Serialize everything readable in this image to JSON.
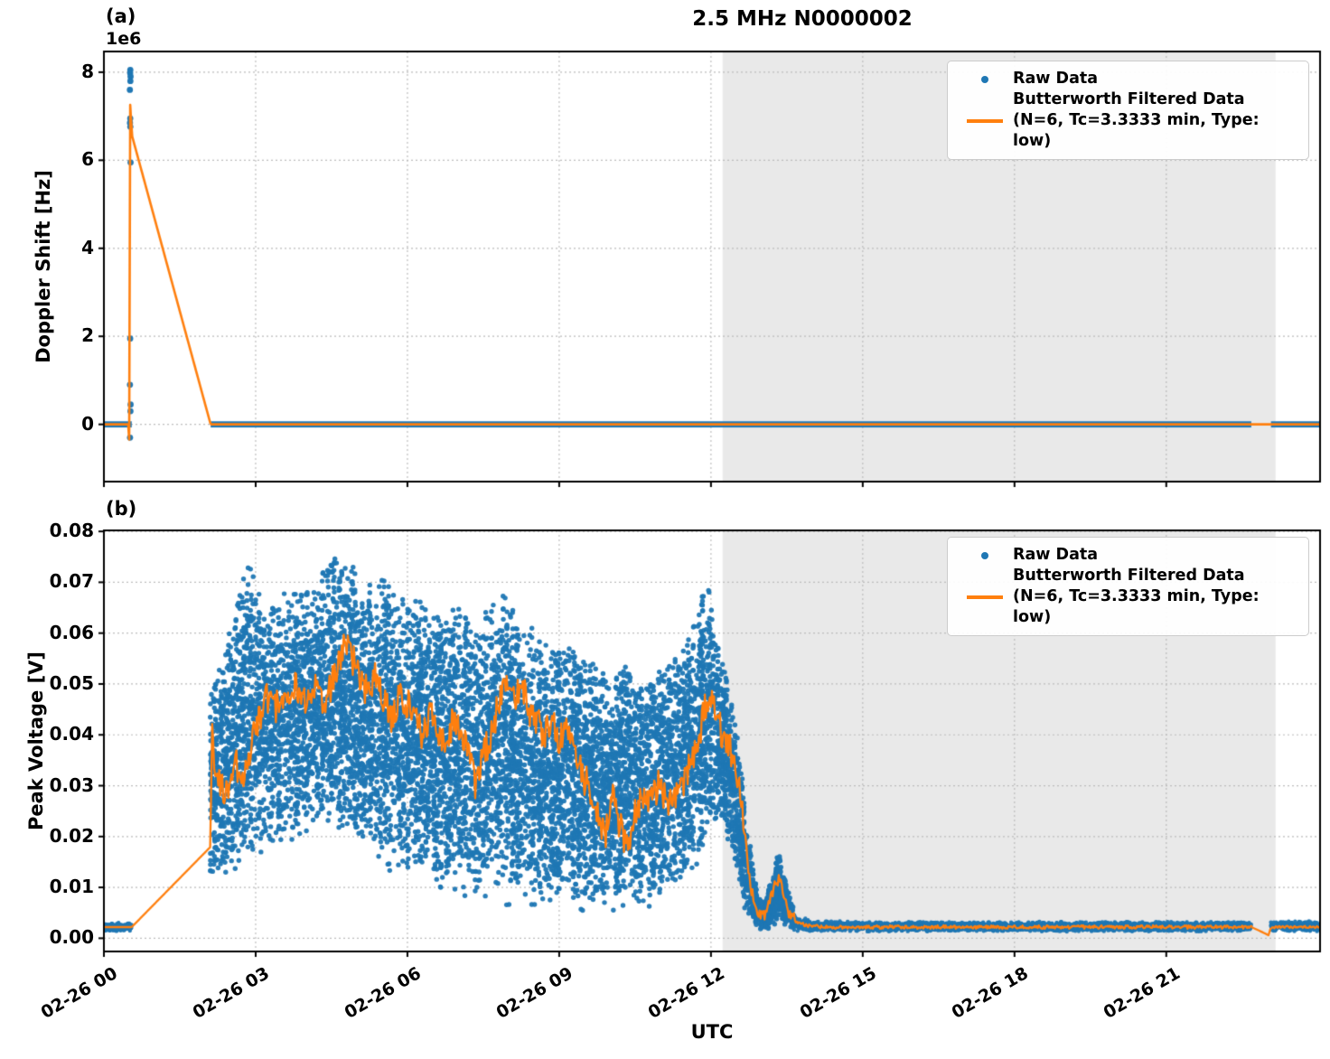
{
  "figure": {
    "title": "2.5 MHz N0000002",
    "xlabel": "UTC",
    "panel_a_label": "(a)",
    "panel_b_label": "(b)",
    "legend": {
      "raw": "Raw Data",
      "filtered_line1": "Butterworth Filtered Data",
      "filtered_line2": "(N=6, Tc=3.3333 min, Type: low)"
    },
    "colors": {
      "raw": "#1f77b4",
      "filtered": "#ff7f0e",
      "span": "#e9e9e9",
      "grid": "#bcbcbc",
      "spine": "#000000"
    }
  },
  "chart_data": [
    {
      "id": "doppler",
      "type": "scatter",
      "panel": "a",
      "ylabel": "Doppler Shift [Hz]",
      "y_offset_text": "1e6",
      "ylim": [
        -1300000,
        8470000
      ],
      "yticks": [
        0,
        2000000,
        4000000,
        6000000,
        8000000
      ],
      "ytick_labels": [
        "0",
        "2",
        "4",
        "6",
        "8"
      ],
      "xlim_hours": [
        0,
        24.04
      ],
      "xtick_hours": [
        0,
        3,
        6,
        9,
        12,
        15,
        18,
        21
      ],
      "xtick_labels": [
        "02-26 00",
        "02-26 03",
        "02-26 06",
        "02-26 09",
        "02-26 12",
        "02-26 15",
        "02-26 18",
        "02-26 21"
      ],
      "shaded_span_hours": [
        12.23,
        23.16
      ],
      "grid": true,
      "series": {
        "raw_baseline_segments_hours": [
          [
            0,
            0.55
          ],
          [
            2.11,
            22.68
          ],
          [
            23.07,
            24.04
          ]
        ],
        "raw_baseline_value": 0,
        "raw_baseline_halfwidth": 70000,
        "raw_spike_t_hours": 0.52,
        "raw_spike_values": [
          8050000,
          7980000,
          7900000,
          7800000,
          7600000,
          6950000,
          6850000,
          6760000,
          5950000,
          1950000,
          900000,
          450000,
          300000,
          -300000
        ],
        "filtered_points": [
          [
            0,
            0
          ],
          [
            0.49,
            0
          ],
          [
            0.503,
            -450000
          ],
          [
            0.518,
            7300000
          ],
          [
            0.555,
            6560000
          ],
          [
            2.11,
            0
          ],
          [
            24.04,
            0
          ]
        ]
      }
    },
    {
      "id": "voltage",
      "type": "scatter",
      "panel": "b",
      "ylabel": "Peak Voltage [V]",
      "ylim": [
        -0.0026,
        0.0802
      ],
      "yticks": [
        0.0,
        0.01,
        0.02,
        0.03,
        0.04,
        0.05,
        0.06,
        0.07,
        0.08
      ],
      "ytick_labels": [
        "0.00",
        "0.01",
        "0.02",
        "0.03",
        "0.04",
        "0.05",
        "0.06",
        "0.07",
        "0.08"
      ],
      "xlim_hours": [
        0,
        24.04
      ],
      "xtick_hours": [
        0,
        3,
        6,
        9,
        12,
        15,
        18,
        21
      ],
      "xtick_labels": [
        "02-26 00",
        "02-26 03",
        "02-26 06",
        "02-26 09",
        "02-26 12",
        "02-26 15",
        "02-26 18",
        "02-26 21"
      ],
      "shaded_span_hours": [
        12.23,
        23.16
      ],
      "grid": true,
      "series": {
        "data_gaps_hours": [
          [
            0.55,
            2.1
          ],
          [
            22.68,
            23.07
          ]
        ],
        "raw_envelope": [
          [
            0.0,
            0.0013,
            0.0031
          ],
          [
            0.55,
            0.0013,
            0.0031
          ],
          [
            2.1,
            0.01,
            0.05
          ],
          [
            2.35,
            0.011,
            0.056
          ],
          [
            2.6,
            0.012,
            0.066
          ],
          [
            2.85,
            0.014,
            0.076
          ],
          [
            3.1,
            0.014,
            0.07
          ],
          [
            3.4,
            0.016,
            0.068
          ],
          [
            3.7,
            0.018,
            0.0715
          ],
          [
            4.0,
            0.018,
            0.07
          ],
          [
            4.3,
            0.02,
            0.073
          ],
          [
            4.6,
            0.02,
            0.0755
          ],
          [
            4.9,
            0.018,
            0.0745
          ],
          [
            5.2,
            0.015,
            0.07
          ],
          [
            5.5,
            0.013,
            0.0735
          ],
          [
            5.8,
            0.013,
            0.068
          ],
          [
            6.1,
            0.01,
            0.07
          ],
          [
            6.4,
            0.01,
            0.065
          ],
          [
            6.7,
            0.008,
            0.064
          ],
          [
            7.0,
            0.008,
            0.067
          ],
          [
            7.3,
            0.006,
            0.062
          ],
          [
            7.6,
            0.007,
            0.066
          ],
          [
            7.9,
            0.006,
            0.07
          ],
          [
            8.2,
            0.006,
            0.063
          ],
          [
            8.5,
            0.005,
            0.062
          ],
          [
            8.8,
            0.005,
            0.058
          ],
          [
            9.1,
            0.005,
            0.06
          ],
          [
            9.4,
            0.004,
            0.057
          ],
          [
            9.7,
            0.004,
            0.055
          ],
          [
            10.0,
            0.004,
            0.052
          ],
          [
            10.3,
            0.005,
            0.055
          ],
          [
            10.6,
            0.005,
            0.05
          ],
          [
            10.9,
            0.006,
            0.052
          ],
          [
            11.2,
            0.008,
            0.055
          ],
          [
            11.5,
            0.01,
            0.058
          ],
          [
            11.8,
            0.015,
            0.068
          ],
          [
            11.95,
            0.02,
            0.071
          ],
          [
            12.1,
            0.022,
            0.06
          ],
          [
            12.3,
            0.02,
            0.052
          ],
          [
            12.5,
            0.012,
            0.042
          ],
          [
            12.7,
            0.004,
            0.025
          ],
          [
            12.9,
            0.002,
            0.01
          ],
          [
            13.05,
            0.0015,
            0.006
          ],
          [
            13.2,
            0.002,
            0.012
          ],
          [
            13.35,
            0.003,
            0.018
          ],
          [
            13.5,
            0.002,
            0.01
          ],
          [
            13.7,
            0.0013,
            0.0045
          ],
          [
            14.0,
            0.0013,
            0.0036
          ],
          [
            15.0,
            0.0013,
            0.0033
          ],
          [
            22.68,
            0.0013,
            0.0033
          ],
          [
            23.07,
            0.0013,
            0.0034
          ],
          [
            24.04,
            0.0013,
            0.0034
          ]
        ],
        "filtered_points": [
          [
            0.0,
            0.0022
          ],
          [
            0.55,
            0.0022
          ],
          [
            2.11,
            0.018
          ],
          [
            2.13,
            0.04
          ],
          [
            2.2,
            0.034
          ],
          [
            2.3,
            0.03
          ],
          [
            2.45,
            0.028
          ],
          [
            2.6,
            0.035
          ],
          [
            2.75,
            0.03
          ],
          [
            2.9,
            0.038
          ],
          [
            3.05,
            0.042
          ],
          [
            3.2,
            0.048
          ],
          [
            3.35,
            0.044
          ],
          [
            3.5,
            0.048
          ],
          [
            3.65,
            0.047
          ],
          [
            3.8,
            0.05
          ],
          [
            4.0,
            0.047
          ],
          [
            4.2,
            0.05
          ],
          [
            4.35,
            0.046
          ],
          [
            4.5,
            0.05
          ],
          [
            4.65,
            0.055
          ],
          [
            4.8,
            0.058
          ],
          [
            4.95,
            0.054
          ],
          [
            5.1,
            0.05
          ],
          [
            5.25,
            0.048
          ],
          [
            5.4,
            0.052
          ],
          [
            5.55,
            0.046
          ],
          [
            5.7,
            0.043
          ],
          [
            5.85,
            0.048
          ],
          [
            6.0,
            0.046
          ],
          [
            6.15,
            0.043
          ],
          [
            6.3,
            0.04
          ],
          [
            6.45,
            0.044
          ],
          [
            6.6,
            0.041
          ],
          [
            6.75,
            0.038
          ],
          [
            6.9,
            0.043
          ],
          [
            7.05,
            0.04
          ],
          [
            7.2,
            0.036
          ],
          [
            7.35,
            0.03
          ],
          [
            7.5,
            0.036
          ],
          [
            7.65,
            0.04
          ],
          [
            7.8,
            0.046
          ],
          [
            7.95,
            0.052
          ],
          [
            8.1,
            0.047
          ],
          [
            8.25,
            0.05
          ],
          [
            8.4,
            0.045
          ],
          [
            8.55,
            0.043
          ],
          [
            8.7,
            0.04
          ],
          [
            8.85,
            0.043
          ],
          [
            9.0,
            0.038
          ],
          [
            9.15,
            0.042
          ],
          [
            9.3,
            0.036
          ],
          [
            9.45,
            0.032
          ],
          [
            9.6,
            0.03
          ],
          [
            9.75,
            0.025
          ],
          [
            9.9,
            0.02
          ],
          [
            10.05,
            0.028
          ],
          [
            10.2,
            0.022
          ],
          [
            10.35,
            0.018
          ],
          [
            10.5,
            0.025
          ],
          [
            10.65,
            0.028
          ],
          [
            10.8,
            0.026
          ],
          [
            10.95,
            0.03
          ],
          [
            11.1,
            0.028
          ],
          [
            11.25,
            0.026
          ],
          [
            11.4,
            0.03
          ],
          [
            11.55,
            0.033
          ],
          [
            11.7,
            0.036
          ],
          [
            11.85,
            0.044
          ],
          [
            11.95,
            0.048
          ],
          [
            12.05,
            0.046
          ],
          [
            12.15,
            0.042
          ],
          [
            12.25,
            0.04
          ],
          [
            12.35,
            0.038
          ],
          [
            12.45,
            0.035
          ],
          [
            12.55,
            0.03
          ],
          [
            12.65,
            0.022
          ],
          [
            12.75,
            0.012
          ],
          [
            12.85,
            0.007
          ],
          [
            12.95,
            0.005
          ],
          [
            13.05,
            0.0045
          ],
          [
            13.15,
            0.007
          ],
          [
            13.25,
            0.01
          ],
          [
            13.35,
            0.012
          ],
          [
            13.45,
            0.007
          ],
          [
            13.55,
            0.005
          ],
          [
            13.7,
            0.003
          ],
          [
            13.9,
            0.0025
          ],
          [
            14.2,
            0.0022
          ],
          [
            15.0,
            0.0022
          ],
          [
            22.68,
            0.0022
          ],
          [
            22.9,
            0.0012
          ],
          [
            23.02,
            0.0006
          ],
          [
            23.07,
            0.0022
          ],
          [
            24.04,
            0.0022
          ]
        ],
        "filtered_noise_segments": [
          [
            2.13,
            12.7,
            0.0032
          ],
          [
            12.7,
            13.65,
            0.0012
          ],
          [
            13.65,
            22.68,
            0.00035
          ],
          [
            23.07,
            24.04,
            0.00025
          ]
        ]
      }
    }
  ]
}
